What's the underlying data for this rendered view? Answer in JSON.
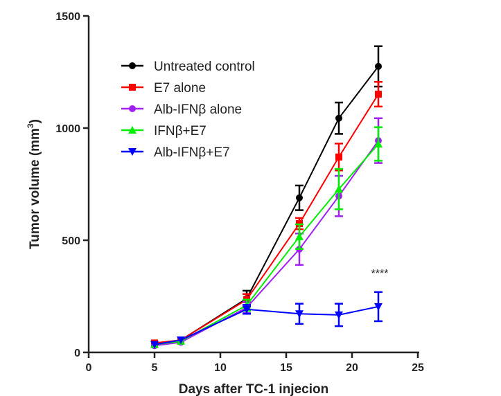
{
  "chart_data": {
    "type": "line",
    "title": "",
    "xlabel": "Days after TC-1 injecion",
    "ylabel": "Tumor volume (mm3)",
    "ylabel_main": "Tumor volume (mm",
    "ylabel_sup": "3",
    "ylabel_close": ")",
    "xlim": [
      0,
      25
    ],
    "ylim": [
      0,
      1500
    ],
    "xticks": [
      0,
      5,
      10,
      15,
      20,
      25
    ],
    "yticks": [
      0,
      500,
      1000,
      1500
    ],
    "grid": false,
    "legend_position": "top-left",
    "x": [
      5,
      7,
      12,
      16,
      19,
      22
    ],
    "series": [
      {
        "name": "Untreated control",
        "color": "#000000",
        "marker": "circle",
        "values": [
          40,
          55,
          240,
          689,
          1044,
          1275
        ],
        "errors": [
          10,
          12,
          35,
          55,
          70,
          90
        ]
      },
      {
        "name": "E7 alone",
        "color": "#ff0000",
        "marker": "square",
        "values": [
          42,
          55,
          235,
          574,
          871,
          1151
        ],
        "errors": [
          8,
          10,
          25,
          25,
          60,
          55
        ]
      },
      {
        "name": "Alb-IFNβ alone",
        "color": "#a020f0",
        "marker": "circle",
        "values": [
          30,
          45,
          200,
          460,
          697,
          944
        ],
        "errors": [
          8,
          10,
          25,
          70,
          90,
          100
        ]
      },
      {
        "name": "IFNβ+E7",
        "color": "#00ee00",
        "marker": "triangle-up",
        "values": [
          35,
          50,
          210,
          516,
          728,
          929
        ],
        "errors": [
          8,
          10,
          25,
          55,
          90,
          75
        ]
      },
      {
        "name": "Alb-IFNβ+E7",
        "color": "#0000ff",
        "marker": "triangle-down",
        "values": [
          35,
          55,
          192,
          172,
          167,
          204
        ],
        "errors": [
          8,
          10,
          20,
          45,
          50,
          65
        ]
      }
    ],
    "annotations": [
      {
        "text": "****",
        "x": 22,
        "y": 350
      }
    ]
  }
}
